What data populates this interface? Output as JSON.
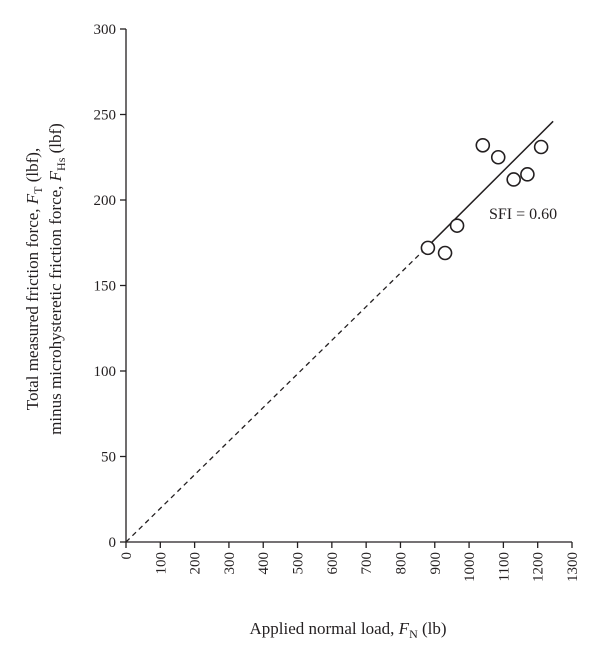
{
  "chart_data": {
    "type": "scatter",
    "title": "",
    "xlabel": {
      "text": "Applied normal load, ",
      "var": "F",
      "sub": "N",
      "unit": "(lb)"
    },
    "ylabel": {
      "line1": {
        "text": "Total measured friction force, ",
        "var": "F",
        "sub": "T",
        "unit": "(lbf),"
      },
      "line2": {
        "text": "minus microhysteretic friction force, ",
        "var": "F",
        "sub": "Hs",
        "unit": "(lbf)"
      }
    },
    "xlim": [
      0,
      1300
    ],
    "ylim": [
      0,
      300
    ],
    "x_ticks": [
      0,
      100,
      200,
      300,
      400,
      500,
      600,
      700,
      800,
      900,
      1000,
      1100,
      1200,
      1300
    ],
    "y_ticks": [
      0,
      50,
      100,
      150,
      200,
      250,
      300
    ],
    "grid": false,
    "legend": "none",
    "points": [
      {
        "x": 880,
        "y": 172
      },
      {
        "x": 930,
        "y": 169
      },
      {
        "x": 965,
        "y": 185
      },
      {
        "x": 1040,
        "y": 232
      },
      {
        "x": 1085,
        "y": 225
      },
      {
        "x": 1130,
        "y": 212
      },
      {
        "x": 1170,
        "y": 215
      },
      {
        "x": 1210,
        "y": 231
      }
    ],
    "fit_line": {
      "dashed": {
        "x": [
          0,
          880
        ],
        "y": [
          0,
          173
        ]
      },
      "solid": {
        "x": [
          880,
          1245
        ],
        "y": [
          173,
          246
        ]
      }
    },
    "annotation": "SFI = 0.60",
    "colors": {
      "ink": "#231f20",
      "marker_fill": "#ffffff"
    }
  }
}
